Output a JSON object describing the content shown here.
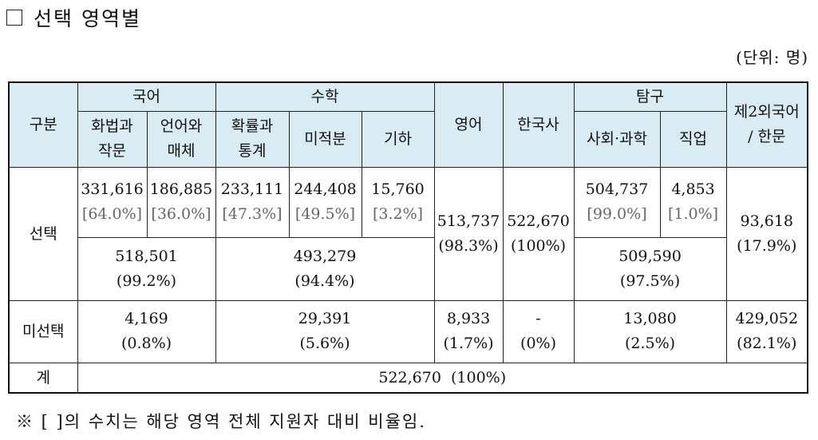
{
  "title": "선택 영역별",
  "unit": "(단위: 명)",
  "header": {
    "category": "구분",
    "korean": "국어",
    "math": "수학",
    "english": "영어",
    "history": "한국사",
    "inquiry": "탐구",
    "foreign_line1": "제2외국어",
    "foreign_line2": "/ 한문",
    "korean_sub": [
      [
        "화법과",
        "작문"
      ],
      [
        "언어와",
        "매체"
      ]
    ],
    "math_sub": [
      [
        "확률과",
        "통계"
      ],
      "미적분",
      "기하"
    ],
    "inquiry_sub": [
      "사회·과학",
      "직업"
    ]
  },
  "rows": {
    "select_label": "선택",
    "unselect_label": "미선택",
    "total_label": "계"
  },
  "select_detail": {
    "speech_writing": {
      "value": "331,616",
      "pct": "[64.0%]"
    },
    "language_media": {
      "value": "186,885",
      "pct": "[36.0%]"
    },
    "prob_stat": {
      "value": "233,111",
      "pct": "[47.3%]"
    },
    "calculus": {
      "value": "244,408",
      "pct": "[49.5%]"
    },
    "geometry": {
      "value": "15,760",
      "pct": "[3.2%]"
    },
    "social_science": {
      "value": "504,737",
      "pct": "[99.0%]"
    },
    "vocational": {
      "value": "4,853",
      "pct": "[1.0%]"
    }
  },
  "select_sum": {
    "korean": {
      "value": "518,501",
      "pct": "(99.2%)"
    },
    "math": {
      "value": "493,279",
      "pct": "(94.4%)"
    },
    "english": {
      "value": "513,737",
      "pct": "(98.3%)"
    },
    "history": {
      "value": "522,670",
      "pct": "(100%)"
    },
    "inquiry": {
      "value": "509,590",
      "pct": "(97.5%)"
    },
    "foreign": {
      "value": "93,618",
      "pct": "(17.9%)"
    }
  },
  "unselect": {
    "korean": {
      "value": "4,169",
      "pct": "(0.8%)"
    },
    "math": {
      "value": "29,391",
      "pct": "(5.6%)"
    },
    "english": {
      "value": "8,933",
      "pct": "(1.7%)"
    },
    "history": {
      "value": "-",
      "pct": "(0%)"
    },
    "inquiry": {
      "value": "13,080",
      "pct": "(2.5%)"
    },
    "foreign": {
      "value": "429,052",
      "pct": "(82.1%)"
    }
  },
  "total": "522,670  (100%)",
  "footnote": "※ [ ]의 수치는 해당 영역 전체 지원자 대비 비율임.",
  "colors": {
    "header_bg": "#d9ebf3",
    "bracket_text": "#666666"
  }
}
